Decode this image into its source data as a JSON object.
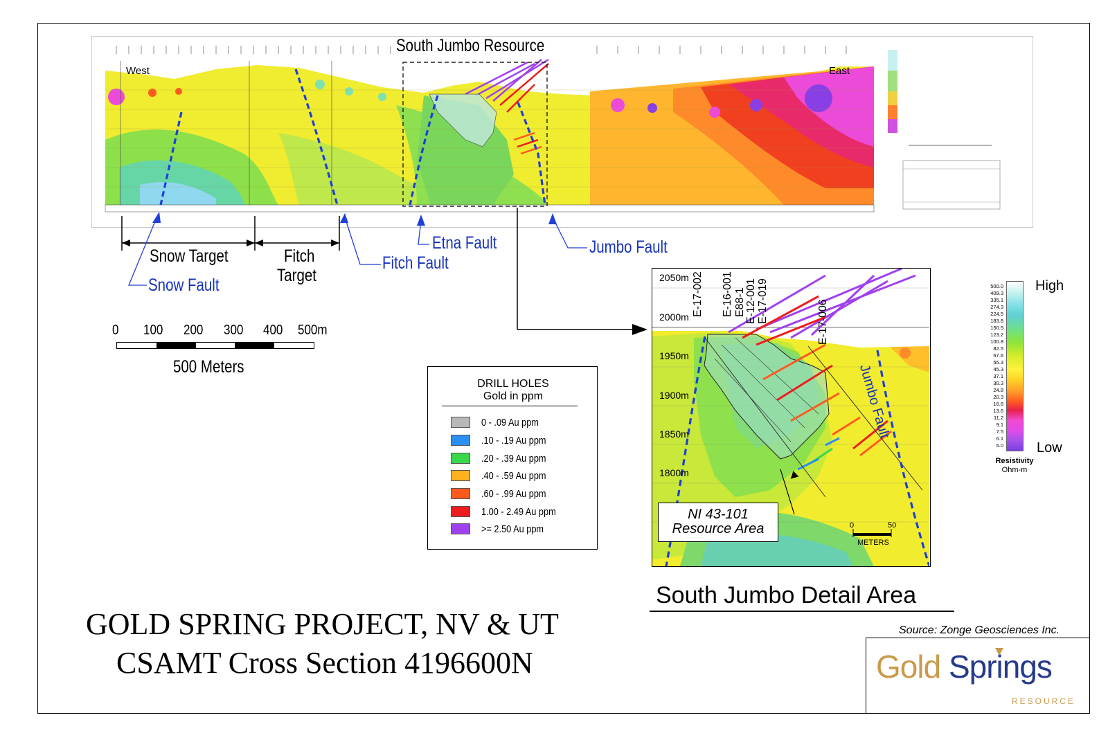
{
  "top_section": {
    "title": "South Jumbo Resource",
    "west_label": "West",
    "east_label": "East"
  },
  "targets": {
    "snow_target": "Snow Target",
    "fitch_target_line1": "Fitch",
    "fitch_target_line2": "Target"
  },
  "faults": {
    "snow": "Snow Fault",
    "fitch": "Fitch Fault",
    "etna": "Etna Fault",
    "jumbo": "Jumbo Fault",
    "jumbo_detail": "Jumbo Fault"
  },
  "scale": {
    "ticks": [
      "0",
      "100",
      "200",
      "300",
      "400",
      "500m"
    ],
    "caption": "500 Meters"
  },
  "drill_legend": {
    "title_line1": "DRILL HOLES",
    "title_line2": "Gold in ppm",
    "items": [
      {
        "label": "0 - .09 Au ppm",
        "color": "#b8b8b8"
      },
      {
        "label": ".10 - .19 Au ppm",
        "color": "#2a8ff0"
      },
      {
        "label": ".20 - .39 Au ppm",
        "color": "#37d84a"
      },
      {
        "label": ".40 - .59 Au ppm",
        "color": "#ffb21e"
      },
      {
        "label": ".60 - .99 Au ppm",
        "color": "#ff5a1e"
      },
      {
        "label": "1.00 - 2.49 Au ppm",
        "color": "#ee1c1c"
      },
      {
        "label": ">= 2.50 Au ppm",
        "color": "#a040f0"
      }
    ]
  },
  "detail": {
    "elevations": [
      "2050m",
      "2000m",
      "1950m",
      "1900m",
      "1850m",
      "1800m"
    ],
    "drill_holes": [
      "E-17-002",
      "E-16-001",
      "E88-1",
      "E-12-001",
      "E-17-019",
      "E-17-006"
    ],
    "resource_label_line1": "NI 43-101",
    "resource_label_line2": "Resource Area",
    "scale_ticks": [
      "0",
      "50"
    ],
    "scale_unit": "METERS",
    "caption": "South Jumbo Detail Area"
  },
  "resistivity": {
    "high": "High",
    "low": "Low",
    "label": "Resistivity",
    "unit": "Ohm-m",
    "values": [
      "500.0",
      "409.3",
      "335.1",
      "274.3",
      "224.5",
      "183.8",
      "150.5",
      "123.2",
      "100.8",
      "82.5",
      "67.6",
      "55.3",
      "45.3",
      "37.1",
      "30.3",
      "24.8",
      "20.3",
      "16.6",
      "13.6",
      "11.2",
      "9.1",
      "7.5",
      "6.1",
      "5.0"
    ]
  },
  "project": {
    "title_line1": "GOLD SPRING PROJECT, NV & UT",
    "title_line2": "CSAMT Cross Section 4196600N",
    "source": "Source: Zonge Geosciences Inc."
  },
  "logo": {
    "word1": "Gold",
    "word2": "Springs",
    "tagline": "RESOURCE",
    "gold_color": "#c99a4a",
    "blue_color": "#263a8c"
  }
}
